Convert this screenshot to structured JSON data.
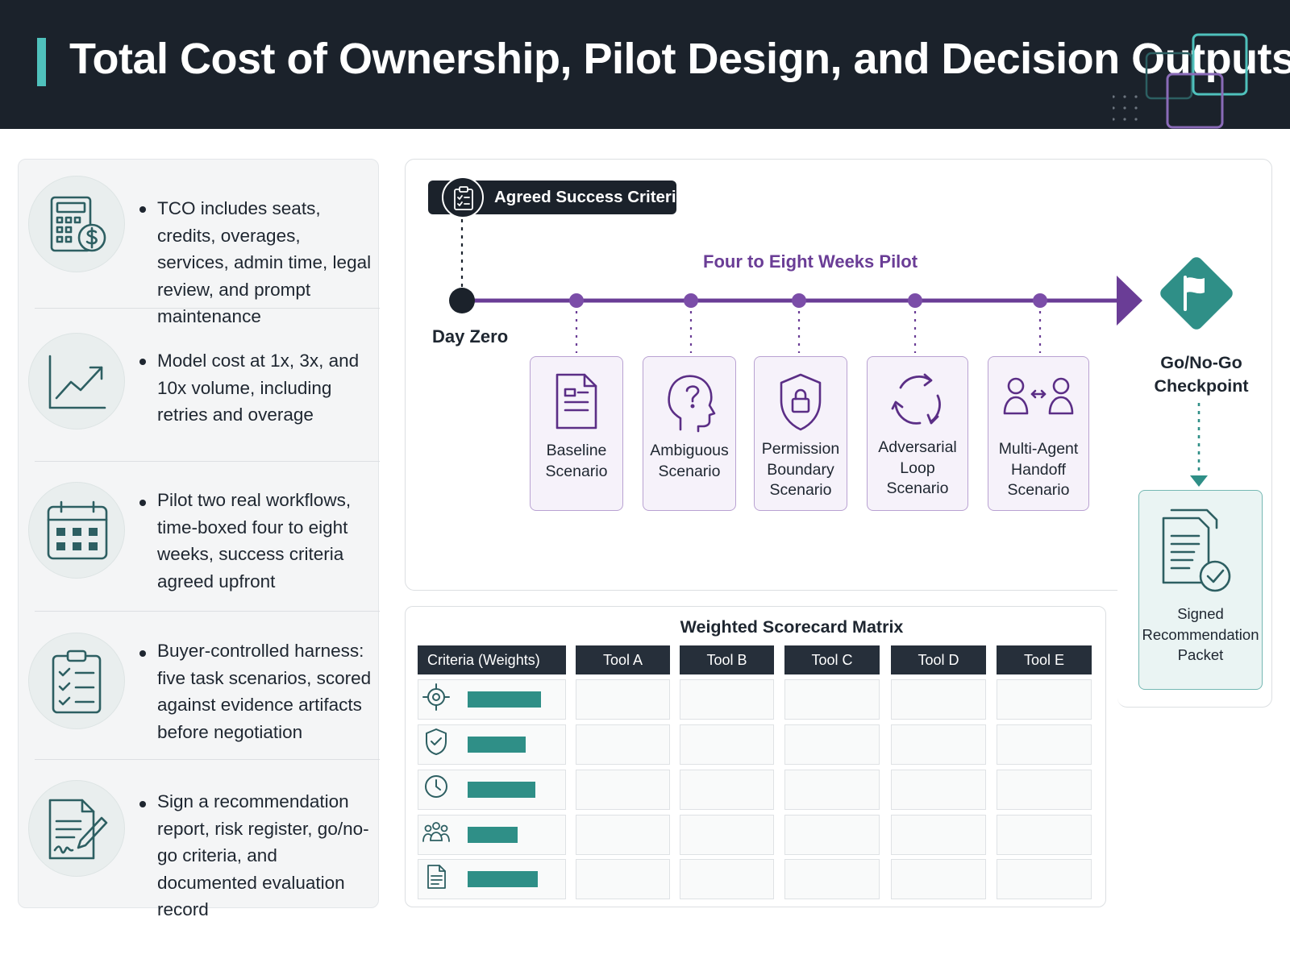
{
  "header": {
    "title": "Total Cost of Ownership, Pilot Design, and Decision Outputs"
  },
  "left_items": [
    {
      "icon": "calculator-dollar-icon",
      "text": "TCO includes seats, credits, overages, services, admin time, legal review, and prompt maintenance"
    },
    {
      "icon": "trend-chart-icon",
      "text": "Model cost at 1x, 3x, and 10x volume, including retries and overage"
    },
    {
      "icon": "calendar-icon",
      "text": "Pilot two real workflows, time-boxed four to eight weeks, success criteria agreed upfront"
    },
    {
      "icon": "checklist-clipboard-icon",
      "text": "Buyer-controlled harness: five task scenarios, scored against evidence artifacts before negotiation"
    },
    {
      "icon": "signed-document-icon",
      "text": "Sign a recommendation report, risk register, go/no-go criteria, and documented evaluation record"
    }
  ],
  "timeline": {
    "criteria_label": "Agreed Success Criteria",
    "pilot_label": "Four to Eight Weeks Pilot",
    "day_zero": "Day Zero",
    "scenarios": [
      {
        "icon": "document-icon",
        "lines": [
          "Baseline",
          "Scenario"
        ]
      },
      {
        "icon": "question-head-icon",
        "lines": [
          "Ambiguous",
          "Scenario"
        ]
      },
      {
        "icon": "shield-lock-icon",
        "lines": [
          "Permission",
          "Boundary",
          "Scenario"
        ]
      },
      {
        "icon": "cycle-arrows-icon",
        "lines": [
          "Adversarial",
          "Loop",
          "Scenario"
        ]
      },
      {
        "icon": "agents-handoff-icon",
        "lines": [
          "Multi-Agent",
          "Handoff",
          "Scenario"
        ]
      }
    ],
    "gonogo_lines": [
      "Go/No-Go",
      "Checkpoint"
    ],
    "packet_lines": [
      "Signed",
      "Recommendation",
      "Packet"
    ]
  },
  "scorecard": {
    "title": "Weighted Scorecard Matrix",
    "criteria_header": "Criteria (Weights)",
    "tools": [
      "Tool A",
      "Tool B",
      "Tool C",
      "Tool D",
      "Tool E"
    ],
    "rows": [
      {
        "icon": "target-icon",
        "weight": 0.95
      },
      {
        "icon": "shield-check-icon",
        "weight": 0.75
      },
      {
        "icon": "clock-icon",
        "weight": 0.87
      },
      {
        "icon": "people-icon",
        "weight": 0.65
      },
      {
        "icon": "document-icon",
        "weight": 0.91
      }
    ]
  },
  "colors": {
    "header_bg": "#1b222b",
    "teal_accent": "#2f8f87",
    "purple_accent": "#6a3d96"
  }
}
